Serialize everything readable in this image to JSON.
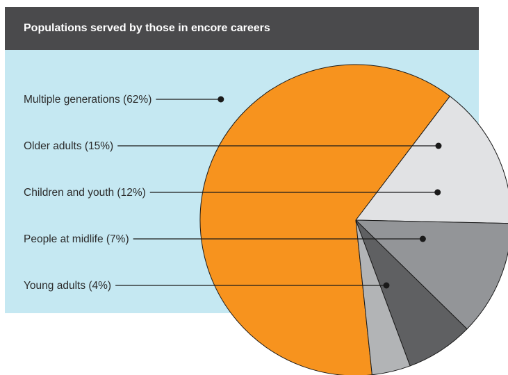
{
  "header": {
    "title": "Populations served by those in encore careers"
  },
  "colors": {
    "header_bg": "#4a4a4c",
    "panel_bg": "#c5e8f2",
    "leader": "#1a1a1a"
  },
  "chart_data": {
    "type": "pie",
    "title": "Populations served by those in encore careers",
    "slices": [
      {
        "label": "Multiple generations (62%)",
        "value": 62,
        "color": "#f7931e"
      },
      {
        "label": "Older adults (15%)",
        "value": 15,
        "color": "#e1e2e4"
      },
      {
        "label": "Children and youth (12%)",
        "value": 12,
        "color": "#939598"
      },
      {
        "label": "People at midlife (7%)",
        "value": 7,
        "color": "#5f6062"
      },
      {
        "label": "Young adults (4%)",
        "value": 4,
        "color": "#b2b4b6"
      }
    ]
  }
}
